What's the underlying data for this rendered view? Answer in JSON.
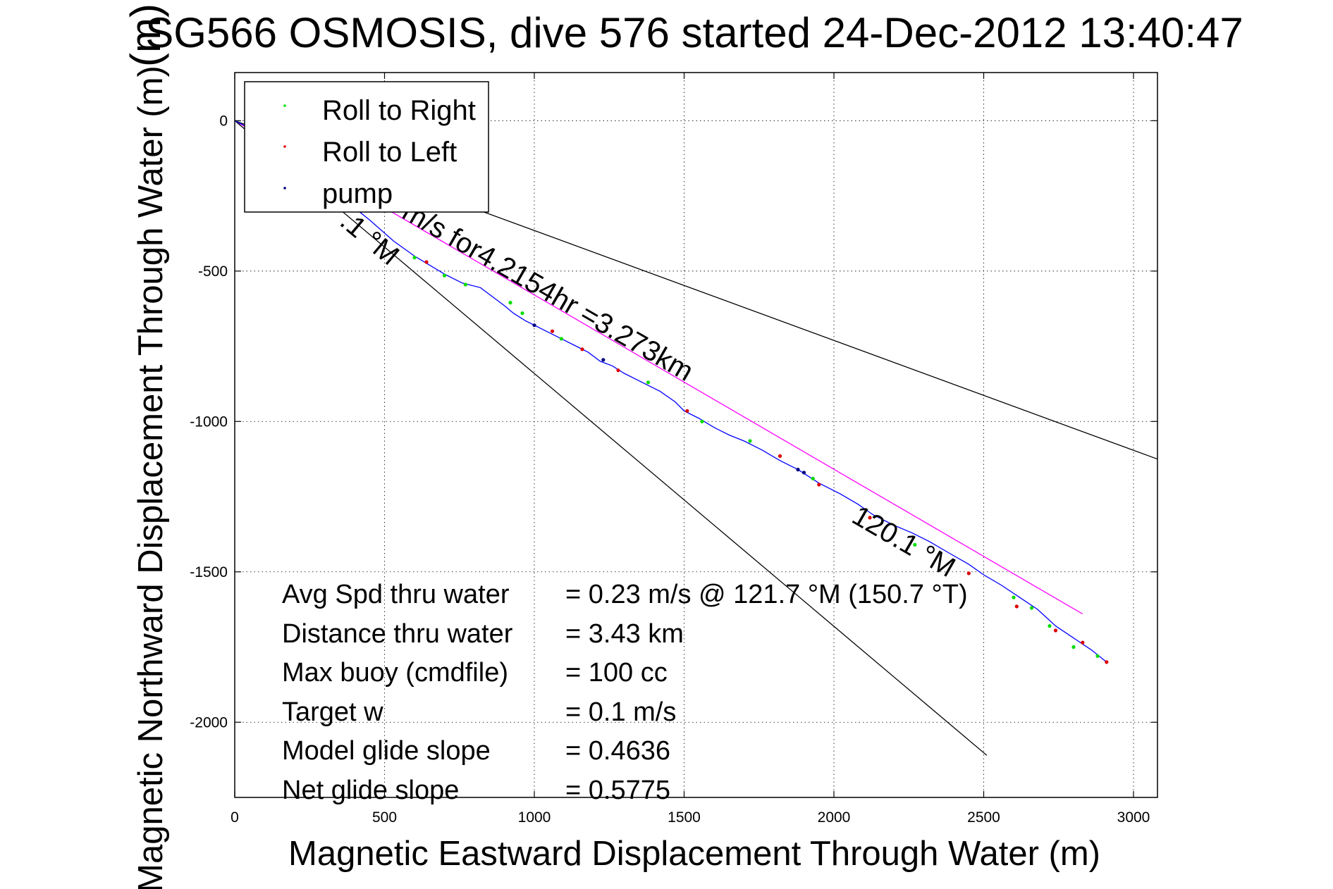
{
  "chart_data": {
    "type": "line",
    "title": "SG566 OSMOSIS, dive 576 started 24-Dec-2012 13:40:47",
    "title_overlap_glyph": "(m)",
    "xlabel": "Magnetic Eastward Displacement Through Water (m)",
    "ylabel": "Magnetic Northward Displacement Through Water (m)",
    "xlim": [
      0,
      3080
    ],
    "ylim": [
      -2250,
      160
    ],
    "xticks": [
      0,
      500,
      1000,
      1500,
      2000,
      2500,
      3000
    ],
    "yticks": [
      0,
      -500,
      -1000,
      -1500,
      -2000
    ],
    "grid": true,
    "legend": {
      "placement": "top-left",
      "entries": [
        {
          "label": "Roll to Right",
          "color": "#00dd00",
          "marker": "point"
        },
        {
          "label": "Roll to Left",
          "color": "#dd0000",
          "marker": "point"
        },
        {
          "label": "pump",
          "color": "#000080",
          "marker": "point"
        }
      ]
    },
    "series": [
      {
        "color": "#0000ff",
        "x": [
          0,
          60,
          150,
          250,
          350,
          450,
          530,
          600,
          650,
          700,
          760,
          820,
          860,
          900,
          930,
          970,
          1020,
          1080,
          1140,
          1180,
          1220,
          1260,
          1300,
          1360,
          1420,
          1470,
          1500,
          1550,
          1600,
          1650,
          1700,
          1760,
          1820,
          1880,
          1950,
          2020,
          2080,
          2130,
          2200,
          2260,
          2320,
          2380,
          2450,
          2500,
          2560,
          2620,
          2680,
          2740,
          2800,
          2860,
          2910
        ],
        "y": [
          0,
          -30,
          -90,
          -170,
          -250,
          -330,
          -400,
          -450,
          -480,
          -510,
          -540,
          -555,
          -585,
          -615,
          -640,
          -665,
          -690,
          -720,
          -750,
          -770,
          -800,
          -815,
          -840,
          -870,
          -900,
          -935,
          -965,
          -990,
          -1020,
          -1045,
          -1065,
          -1095,
          -1130,
          -1160,
          -1205,
          -1240,
          -1275,
          -1310,
          -1345,
          -1370,
          -1400,
          -1435,
          -1475,
          -1510,
          -1545,
          -1585,
          -1625,
          -1680,
          -1720,
          -1760,
          -1800
        ]
      }
    ],
    "reference_lines": [
      {
        "color": "#ff00ff",
        "x": [
          0,
          2830
        ],
        "y": [
          0,
          -1640
        ]
      },
      {
        "color": "#000000",
        "x": [
          0,
          2510
        ],
        "y": [
          0,
          -2110
        ]
      },
      {
        "color": "#000000",
        "x": [
          0,
          3080
        ],
        "y": [
          0,
          -1125
        ]
      }
    ],
    "markers": {
      "roll_right": {
        "color": "#00dd00",
        "x": [
          360,
          600,
          700,
          770,
          920,
          960,
          1090,
          1380,
          1560,
          1720,
          1930,
          2270,
          2600,
          2660,
          2720,
          2800,
          2880
        ],
        "y": [
          -260,
          -455,
          -515,
          -545,
          -605,
          -640,
          -725,
          -870,
          -1000,
          -1065,
          -1190,
          -1410,
          -1585,
          -1620,
          -1680,
          -1750,
          -1780
        ]
      },
      "roll_left": {
        "color": "#dd0000",
        "x": [
          640,
          1060,
          1160,
          1280,
          1510,
          1820,
          1950,
          2120,
          2450,
          2610,
          2740,
          2830,
          2910
        ],
        "y": [
          -470,
          -700,
          -760,
          -830,
          -965,
          -1115,
          -1210,
          -1320,
          -1505,
          -1615,
          -1695,
          -1735,
          -1800
        ]
      },
      "pump": {
        "color": "#000080",
        "x": [
          1000,
          1230,
          1880,
          1900
        ],
        "y": [
          -680,
          -795,
          -1160,
          -1170
        ]
      }
    },
    "annotations": {
      "track_label_partial_1": "m/s for4.2154hr =3.273km",
      "track_label_partial_2": ".1 °M",
      "heading_label": "120.1 °M"
    },
    "stats": [
      {
        "label": "Avg Spd thru water",
        "value": "=  0.23 m/s @ 121.7 °M (150.7 °T)"
      },
      {
        "label": "Distance thru water",
        "value": "=  3.43 km"
      },
      {
        "label": "Max buoy (cmdfile)",
        "value": "= 100 cc"
      },
      {
        "label": "Target w",
        "value": "= 0.1 m/s"
      },
      {
        "label": "Model glide slope",
        "value": "= 0.4636"
      },
      {
        "label": "Net glide slope",
        "value": "= 0.5775"
      }
    ]
  }
}
